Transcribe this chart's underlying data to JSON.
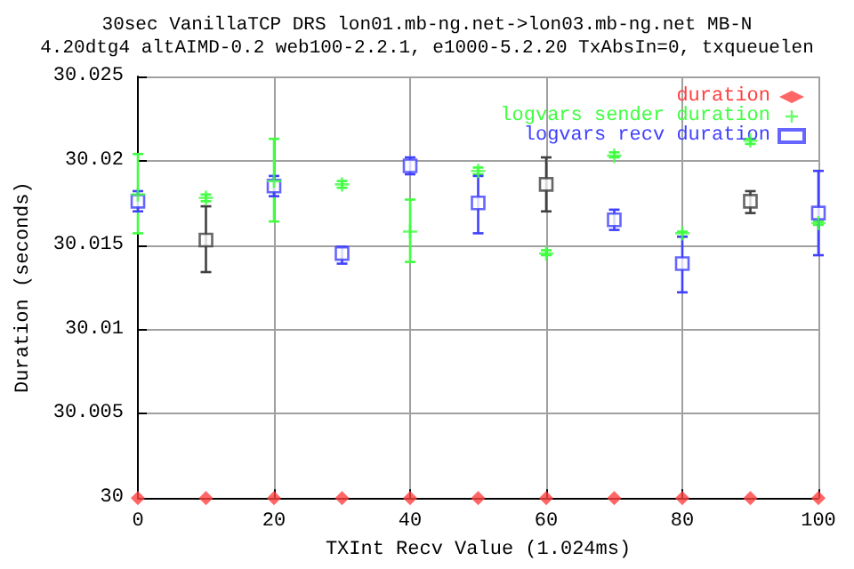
{
  "chart_data": {
    "type": "scatter",
    "title": "30sec VanillaTCP DRS lon01.mb-ng.net->lon03.mb-ng.net MB-N",
    "subtitle": "4.20dtg4 altAIMD-0.2 web100-2.2.1, e1000-5.2.20 TxAbsIn=0, txqueuelen",
    "xlabel": "TXInt Recv Value (1.024ms)",
    "ylabel": "Duration (seconds)",
    "xlim": [
      0,
      100
    ],
    "xticks": [
      0,
      20,
      40,
      60,
      80,
      100
    ],
    "ylim": [
      30,
      30.025
    ],
    "yticks": [
      30,
      30.005,
      30.01,
      30.015,
      30.02,
      30.025
    ],
    "grid": true,
    "legend": "top right",
    "series": [
      {
        "name": "duration",
        "color": "#ff4040",
        "marker": "diamond",
        "x": [
          0,
          10,
          20,
          30,
          40,
          50,
          60,
          70,
          80,
          90,
          100
        ],
        "values": [
          30,
          30,
          30,
          30,
          30,
          30,
          30,
          30,
          30,
          30,
          30
        ]
      },
      {
        "name": "logvars sender duration",
        "color": "#40ff40",
        "marker": "cross",
        "x": [
          0,
          10,
          20,
          30,
          40,
          50,
          60,
          70,
          80,
          90,
          100
        ],
        "values": [
          30.018,
          30.0178,
          30.0188,
          30.0186,
          30.0158,
          30.0194,
          30.0145,
          30.0203,
          30.0157,
          30.0212,
          30.0163
        ],
        "errors": [
          [
            30.0157,
            30.0204
          ],
          [
            30.0176,
            30.018
          ],
          [
            30.0164,
            30.0213
          ],
          [
            30.0184,
            30.0188
          ],
          [
            30.014,
            30.0177
          ],
          [
            30.0192,
            30.0196
          ],
          [
            30.0144,
            30.0147
          ],
          [
            30.0202,
            30.0205
          ],
          [
            30.0155,
            30.0158
          ],
          [
            30.021,
            30.0213
          ],
          [
            30.0162,
            30.0164
          ]
        ]
      },
      {
        "name": "logvars recv duration",
        "color": "#4040ff",
        "marker": "square",
        "x": [
          0,
          20,
          30,
          40,
          50,
          70,
          80,
          100
        ],
        "values": [
          30.0176,
          30.0185,
          30.0145,
          30.0197,
          30.0175,
          30.0165,
          30.0139,
          30.0169
        ],
        "errors": [
          [
            30.017,
            30.0182
          ],
          [
            30.0179,
            30.0191
          ],
          [
            30.0139,
            30.0149
          ],
          [
            30.0192,
            30.0202
          ],
          [
            30.0157,
            30.0191
          ],
          [
            30.0159,
            30.0171
          ],
          [
            30.0122,
            30.0155
          ],
          [
            30.0144,
            30.0194
          ]
        ]
      },
      {
        "color": "#404040",
        "marker": "square",
        "x": [
          10,
          60,
          90
        ],
        "values": [
          30.0153,
          30.0186,
          30.0176
        ],
        "errors": [
          [
            30.0134,
            30.0173
          ],
          [
            30.017,
            30.0202
          ],
          [
            30.0169,
            30.0182
          ]
        ]
      }
    ]
  }
}
